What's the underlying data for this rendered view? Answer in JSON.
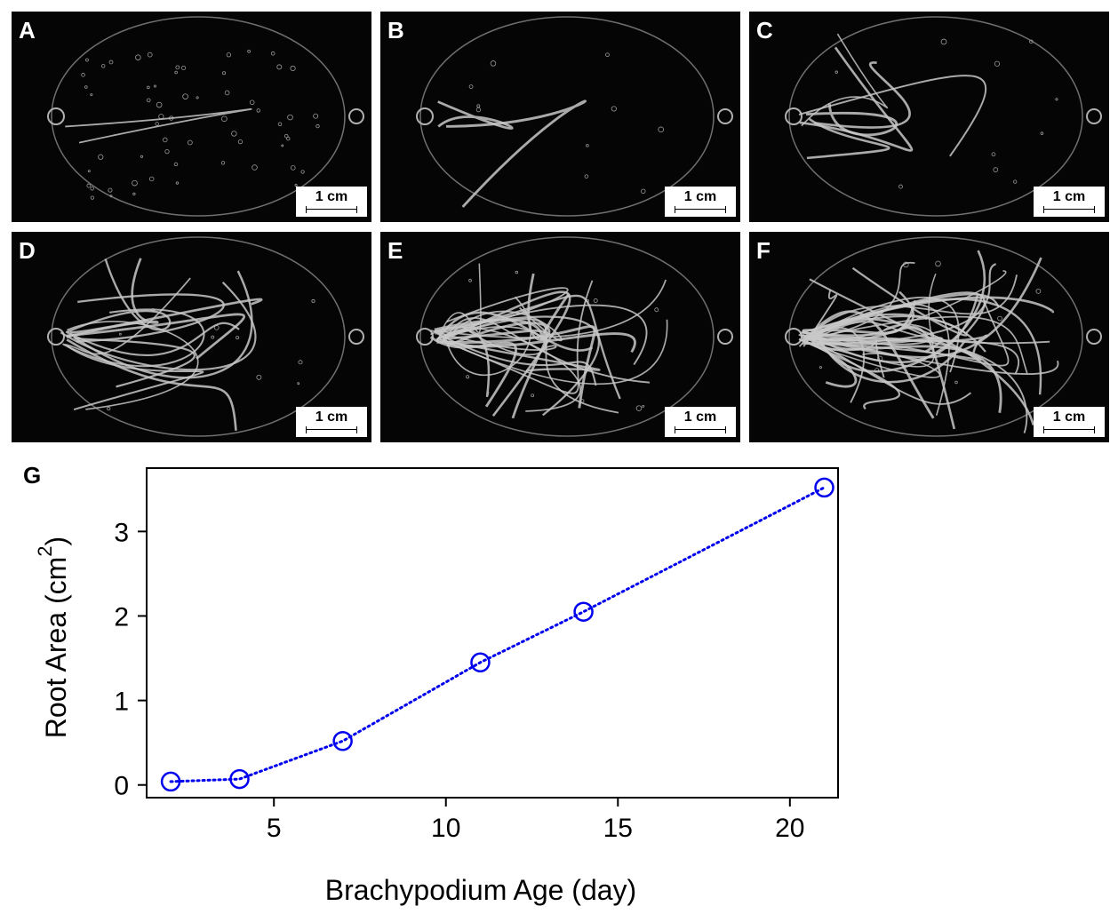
{
  "panels": [
    {
      "letter": "A",
      "scale_label": "1 cm"
    },
    {
      "letter": "B",
      "scale_label": "1 cm"
    },
    {
      "letter": "C",
      "scale_label": "1 cm"
    },
    {
      "letter": "D",
      "scale_label": "1 cm"
    },
    {
      "letter": "E",
      "scale_label": "1 cm"
    },
    {
      "letter": "F",
      "scale_label": "1 cm"
    }
  ],
  "chart_letter": "G",
  "chart_data": {
    "type": "line",
    "title": "",
    "xlabel": "Brachypodium Age (day)",
    "ylabel": "Root Area (cm",
    "ylabel_sup": "2",
    "ylabel_close": ")",
    "x": [
      2,
      4,
      7,
      11,
      14,
      21
    ],
    "series": [
      {
        "values": [
          0.04,
          0.07,
          0.52,
          1.45,
          2.05,
          3.52
        ],
        "color": "#0000ee"
      }
    ],
    "xlim": [
      1.3,
      21.4
    ],
    "ylim": [
      -0.15,
      3.75
    ],
    "xticks": [
      5,
      10,
      15,
      20
    ],
    "yticks": [
      0,
      1,
      2,
      3
    ],
    "grid": false,
    "line_style": "dotted",
    "marker": "open-circle"
  }
}
